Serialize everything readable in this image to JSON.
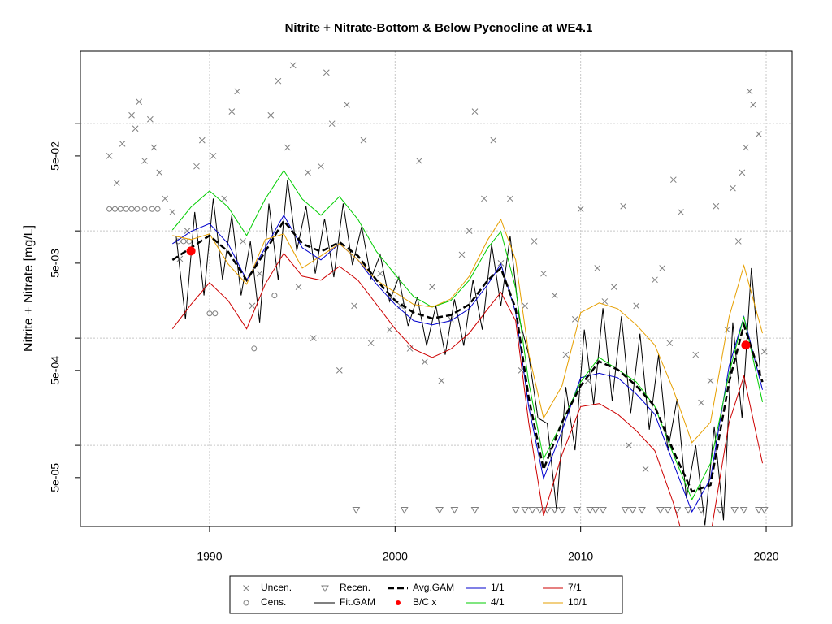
{
  "chart_data": {
    "type": "line",
    "title": "Nitrite + Nitrate-Bottom & Below Pycnocline at WE4.1",
    "y_label": "Nitrite + Nitrate [mg/L]",
    "log_y": true,
    "grid": true,
    "xlim": [
      1983.04,
      2021.4
    ],
    "ylim": [
      1.75e-05,
      0.474
    ],
    "xticks": [
      1990,
      2000,
      2010,
      2020
    ],
    "yticks": [
      {
        "value": 5e-05,
        "label": "5e-05"
      },
      {
        "value": 0.0005,
        "label": "5e-04"
      },
      {
        "value": 0.005,
        "label": "5e-03"
      },
      {
        "value": 0.05,
        "label": "5e-02"
      }
    ],
    "ygrid": [
      0.0001,
      0.001,
      0.01,
      0.1
    ],
    "points": [
      {
        "name": "Uncen.",
        "marker": "x",
        "color": "#7f7f7f",
        "x": [
          1984.6,
          1985,
          1985.3,
          1985.8,
          1986.0,
          1986.2,
          1986.5,
          1986.8,
          1987.0,
          1987.3,
          1987.6,
          1988.0,
          1988.4,
          1988.8,
          1989.3,
          1989.6,
          1990.2,
          1990.8,
          1991.2,
          1991.5,
          1991.8,
          1992.3,
          1992.7,
          1993.3,
          1993.7,
          1994.2,
          1994.5,
          1994.8,
          1995.3,
          1995.6,
          1996.0,
          1996.3,
          1996.6,
          1997.0,
          1997.4,
          1997.8,
          1998.3,
          1998.7,
          1999.2,
          1999.7,
          2000.3,
          2000.8,
          2001.3,
          2001.6,
          2002.0,
          2002.5,
          2003.0,
          2003.6,
          2004.0,
          2004.3,
          2004.8,
          2005.3,
          2005.7,
          2006.2,
          2006.8,
          2007.0,
          2007.5,
          2008.0,
          2008.6,
          2009.2,
          2009.7,
          2010.0,
          2010.4,
          2010.9,
          2011.3,
          2011.8,
          2012.3,
          2012.6,
          2013.0,
          2013.5,
          2014.0,
          2014.4,
          2014.8,
          2015.0,
          2015.4,
          2016.2,
          2016.5,
          2017.0,
          2017.3,
          2017.9,
          2018.2,
          2018.5,
          2018.7,
          2018.9,
          2019.1,
          2019.3,
          2019.6,
          2019.9
        ],
        "values": [
          0.05,
          0.028,
          0.065,
          0.12,
          0.09,
          0.16,
          0.045,
          0.11,
          0.06,
          0.035,
          0.02,
          0.015,
          0.0055,
          0.01,
          0.04,
          0.07,
          0.05,
          0.02,
          0.13,
          0.2,
          0.008,
          0.002,
          0.004,
          0.12,
          0.25,
          0.06,
          0.35,
          0.003,
          0.035,
          0.001,
          0.04,
          0.3,
          0.1,
          0.0005,
          0.15,
          0.002,
          0.07,
          0.0009,
          0.004,
          0.0012,
          0.002,
          0.0008,
          0.045,
          0.0006,
          0.003,
          0.0004,
          0.0015,
          0.006,
          0.01,
          0.13,
          0.02,
          0.07,
          0.005,
          0.02,
          0.0005,
          0.002,
          0.008,
          0.004,
          0.0025,
          0.0007,
          0.0015,
          0.016,
          0.0004,
          0.0045,
          0.0022,
          0.003,
          0.017,
          0.0001,
          0.002,
          6e-05,
          0.0035,
          0.0045,
          0.0009,
          0.03,
          0.015,
          0.0007,
          0.00025,
          0.0004,
          0.017,
          0.0012,
          0.025,
          0.008,
          0.035,
          0.06,
          0.2,
          0.15,
          0.08,
          0.00075
        ]
      },
      {
        "name": "Cens.",
        "marker": "o",
        "color": "#7f7f7f",
        "x": [
          1984.6,
          1984.9,
          1985.2,
          1985.5,
          1985.8,
          1986.1,
          1986.5,
          1986.9,
          1987.2,
          1988.3,
          1988.6,
          1988.9,
          1990.0,
          1990.3,
          1992.4,
          1993.5
        ],
        "values": [
          0.016,
          0.016,
          0.016,
          0.016,
          0.016,
          0.016,
          0.016,
          0.016,
          0.016,
          0.008,
          0.008,
          0.008,
          0.0017,
          0.0017,
          0.0008,
          0.0025
        ]
      },
      {
        "name": "Recen.",
        "marker": "v",
        "color": "#7f7f7f",
        "x": [
          1997.9,
          2000.5,
          2002.4,
          2003.2,
          2004.3,
          2006.5,
          2007.0,
          2007.4,
          2007.8,
          2008.2,
          2008.6,
          2009.0,
          2009.8,
          2010.5,
          2010.8,
          2011.2,
          2012.4,
          2012.8,
          2013.3,
          2014.3,
          2014.7,
          2015.2,
          2015.8,
          2016.5,
          2017.5,
          2018.3,
          2018.8,
          2019.6,
          2019.9
        ],
        "values": [
          2.5e-05,
          2.5e-05,
          2.5e-05,
          2.5e-05,
          2.5e-05,
          2.5e-05,
          2.5e-05,
          2.5e-05,
          2.5e-05,
          2.5e-05,
          2.5e-05,
          2.5e-05,
          2.5e-05,
          2.5e-05,
          2.5e-05,
          2.5e-05,
          2.5e-05,
          2.5e-05,
          2.5e-05,
          2.5e-05,
          2.5e-05,
          2.5e-05,
          2.5e-05,
          2.5e-05,
          2.5e-05,
          2.5e-05,
          2.5e-05,
          2.5e-05,
          2.5e-05
        ]
      }
    ],
    "fit": {
      "name": "Fit.GAM",
      "color": "#000000",
      "x": [
        1988.2,
        1988.7,
        1989.2,
        1989.7,
        1990.2,
        1990.7,
        1991.2,
        1991.7,
        1992.2,
        1992.7,
        1993.2,
        1993.7,
        1994.2,
        1994.7,
        1995.2,
        1995.7,
        1996.2,
        1996.7,
        1997.2,
        1997.7,
        1998.2,
        1998.7,
        1999.2,
        1999.7,
        2000.2,
        2000.7,
        2001.2,
        2001.7,
        2002.2,
        2002.7,
        2003.2,
        2003.7,
        2004.2,
        2004.7,
        2005.2,
        2005.7,
        2006.2,
        2006.7,
        2007.2,
        2007.7,
        2008.2,
        2008.7,
        2009.2,
        2009.7,
        2010.2,
        2010.7,
        2011.2,
        2011.7,
        2012.2,
        2012.7,
        2013.2,
        2013.7,
        2014.2,
        2014.7,
        2015.2,
        2015.7,
        2016.2,
        2016.7,
        2017.2,
        2017.7,
        2018.2,
        2018.7,
        2019.2,
        2019.7
      ],
      "values": [
        0.009,
        0.0015,
        0.015,
        0.0025,
        0.02,
        0.0035,
        0.014,
        0.0025,
        0.008,
        0.0014,
        0.018,
        0.0035,
        0.03,
        0.0065,
        0.017,
        0.004,
        0.013,
        0.0037,
        0.018,
        0.0048,
        0.011,
        0.0036,
        0.006,
        0.0022,
        0.0037,
        0.0013,
        0.0024,
        0.00085,
        0.002,
        0.0007,
        0.0023,
        0.00085,
        0.0035,
        0.0012,
        0.0075,
        0.002,
        0.009,
        0.0015,
        0.0007,
        0.00018,
        0.00016,
        2.5e-05,
        0.00035,
        9e-05,
        0.0012,
        0.00024,
        0.0019,
        0.00026,
        0.0016,
        0.0002,
        0.0011,
        0.00014,
        0.0007,
        9e-05,
        0.00027,
        3.2e-05,
        0.0001,
        1.8e-05,
        0.00015,
        2e-05,
        0.0014,
        0.00018,
        0.0045,
        0.00045
      ]
    },
    "curve_x": [
      1988,
      1989,
      1990,
      1991,
      1992,
      1993,
      1994,
      1995,
      1996,
      1997,
      1998,
      1999,
      2000,
      2001,
      2002,
      2003,
      2004,
      2005,
      2005.7,
      2006.5,
      2007.2,
      2008,
      2009,
      2010,
      2011,
      2012,
      2013,
      2014,
      2015,
      2016,
      2017,
      2018,
      2018.8,
      2019.8
    ],
    "series": [
      {
        "name": "Avg.GAM",
        "color": "#000000",
        "dash": true,
        "width": 2.5,
        "values": [
          0.00536,
          0.00696,
          0.00905,
          0.0064,
          0.00347,
          0.0064,
          0.0124,
          0.0076,
          0.0064,
          0.00787,
          0.00585,
          0.00347,
          0.00224,
          0.00173,
          0.00153,
          0.00164,
          0.00206,
          0.00347,
          0.0045,
          0.00188,
          0.00028,
          5.96e-05,
          0.000164,
          0.000359,
          0.000606,
          0.000509,
          0.000359,
          0.00023,
          8.89e-05,
          3.71e-05,
          4.25e-05,
          0.00039,
          0.00133,
          0.00039
        ]
      },
      {
        "name": "1/1",
        "color": "#0000cd",
        "dash": false,
        "width": 1,
        "values": [
          0.0076,
          0.00988,
          0.0117,
          0.0076,
          0.00347,
          0.00696,
          0.014,
          0.00696,
          0.00536,
          0.0076,
          0.00536,
          0.00318,
          0.00206,
          0.00145,
          0.00133,
          0.00145,
          0.00188,
          0.00318,
          0.00491,
          0.00173,
          0.00023,
          4.9e-05,
          0.000137,
          0.000428,
          0.00047,
          0.000428,
          0.000301,
          0.000195,
          6.8e-05,
          2.4e-05,
          4.9e-05,
          0.00055,
          0.00158,
          0.00033
        ]
      },
      {
        "name": "4/1",
        "color": "#00cd00",
        "dash": false,
        "width": 1,
        "values": [
          0.0102,
          0.0167,
          0.0236,
          0.0167,
          0.00905,
          0.0198,
          0.0365,
          0.0198,
          0.014,
          0.0209,
          0.0128,
          0.0064,
          0.00392,
          0.00244,
          0.00195,
          0.00224,
          0.00347,
          0.00696,
          0.00988,
          0.00291,
          0.00039,
          7.46e-05,
          0.000164,
          0.00039,
          0.00066,
          0.000509,
          0.00039,
          0.00023,
          8.23e-05,
          3.12e-05,
          6.8e-05,
          0.00047,
          0.00158,
          0.000253
        ]
      },
      {
        "name": "7/1",
        "color": "#cd0000",
        "dash": false,
        "width": 1,
        "values": [
          0.00122,
          0.00206,
          0.00329,
          0.00224,
          0.00122,
          0.00318,
          0.00617,
          0.00378,
          0.00347,
          0.00466,
          0.00347,
          0.00206,
          0.00122,
          0.00079,
          0.00066,
          0.00079,
          0.00111,
          0.00188,
          0.00267,
          0.00145,
          0.000164,
          2.2e-05,
          8.23e-05,
          0.00023,
          0.000245,
          0.000195,
          0.000137,
          8.89e-05,
          2.9e-05,
          7.1e-06,
          1.43e-05,
          0.000164,
          0.000443,
          6.8e-05
        ]
      },
      {
        "name": "10/1",
        "color": "#e69f00",
        "dash": false,
        "width": 1,
        "values": [
          0.00905,
          0.0083,
          0.00937,
          0.00491,
          0.00318,
          0.0083,
          0.00937,
          0.0045,
          0.00585,
          0.0076,
          0.00536,
          0.00347,
          0.00267,
          0.00206,
          0.00195,
          0.00232,
          0.00378,
          0.0083,
          0.0128,
          0.00536,
          0.00072,
          0.000179,
          0.000359,
          0.00173,
          0.00213,
          0.00188,
          0.00133,
          0.00086,
          0.00033,
          0.000106,
          0.000164,
          0.00158,
          0.00474,
          0.00111
        ]
      }
    ],
    "bc": {
      "name": "B/C x",
      "color": "#ff0000",
      "x": [
        1989.0,
        2018.9
      ],
      "values": [
        0.0065,
        0.00086
      ]
    }
  }
}
